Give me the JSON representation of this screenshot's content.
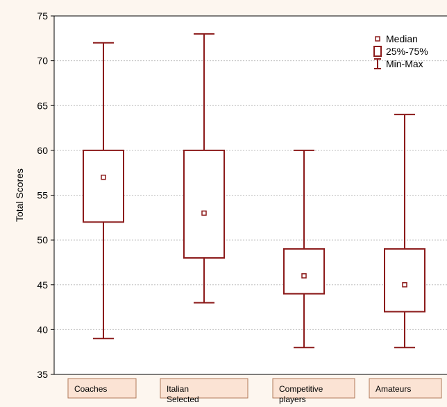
{
  "chart_data": {
    "type": "box",
    "title": "",
    "xlabel": "",
    "ylabel": "Total Scores",
    "ylim": [
      35,
      75
    ],
    "yticks": [
      35,
      40,
      45,
      50,
      55,
      60,
      65,
      70,
      75
    ],
    "grid": true,
    "legend_position": "top-right",
    "categories": [
      "Coaches",
      "Italian\nSelected",
      "Competitive\nplayers",
      "Amateurs"
    ],
    "boxes": [
      {
        "category": "Coaches",
        "min": 39,
        "q1": 52,
        "median": 57,
        "q3": 60,
        "max": 72
      },
      {
        "category": "Italian Selected",
        "min": 43,
        "q1": 48,
        "median": 53,
        "q3": 60,
        "max": 73
      },
      {
        "category": "Competitive players",
        "min": 38,
        "q1": 44,
        "median": 46,
        "q3": 49,
        "max": 60
      },
      {
        "category": "Amateurs",
        "min": 38,
        "q1": 42,
        "median": 45,
        "q3": 49,
        "max": 64
      }
    ],
    "legend": [
      {
        "symbol": "median",
        "label": "Median"
      },
      {
        "symbol": "box",
        "label": "25%-75%"
      },
      {
        "symbol": "whisker",
        "label": "Min-Max"
      }
    ],
    "colors": {
      "stroke": "#8b1a1a",
      "box_fill": "#ffffff",
      "category_label_fill": "#fbe3d4",
      "category_label_border": "#b07a5a",
      "grid": "#bdbdbd",
      "background": "#fdf6ef",
      "plot_background": "#ffffff"
    }
  }
}
